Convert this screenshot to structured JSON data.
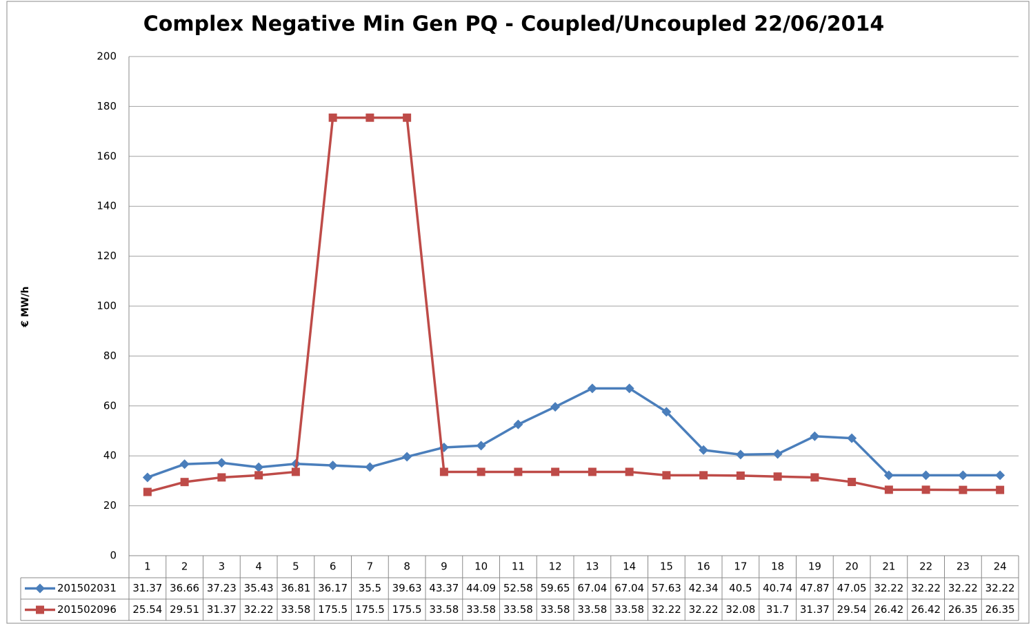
{
  "chart_data": {
    "type": "line",
    "title": "Complex Negative Min Gen PQ - Coupled/Uncoupled 22/06/2014",
    "y_label": "€ MW/h",
    "categories": [
      "1",
      "2",
      "3",
      "4",
      "5",
      "6",
      "7",
      "8",
      "9",
      "10",
      "11",
      "12",
      "13",
      "14",
      "15",
      "16",
      "17",
      "18",
      "19",
      "20",
      "21",
      "22",
      "23",
      "24"
    ],
    "series": [
      {
        "name": "201502031",
        "color": "#4a7ebb",
        "marker": "diamond",
        "values": [
          31.37,
          36.66,
          37.23,
          35.43,
          36.81,
          36.17,
          35.5,
          39.63,
          43.37,
          44.09,
          52.58,
          59.65,
          67.04,
          67.04,
          57.63,
          42.34,
          40.5,
          40.74,
          47.87,
          47.05,
          32.22,
          32.22,
          32.22,
          32.22
        ]
      },
      {
        "name": "201502096",
        "color": "#be4b48",
        "marker": "square",
        "values": [
          25.54,
          29.51,
          31.37,
          32.22,
          33.58,
          175.5,
          175.5,
          175.5,
          33.58,
          33.58,
          33.58,
          33.58,
          33.58,
          33.58,
          32.22,
          32.22,
          32.08,
          31.7,
          31.37,
          29.54,
          26.42,
          26.42,
          26.35,
          26.35
        ]
      }
    ],
    "ylim": [
      0,
      200
    ],
    "yticks": [
      0,
      20,
      40,
      60,
      80,
      100,
      120,
      140,
      160,
      180,
      200
    ],
    "grid": true
  }
}
